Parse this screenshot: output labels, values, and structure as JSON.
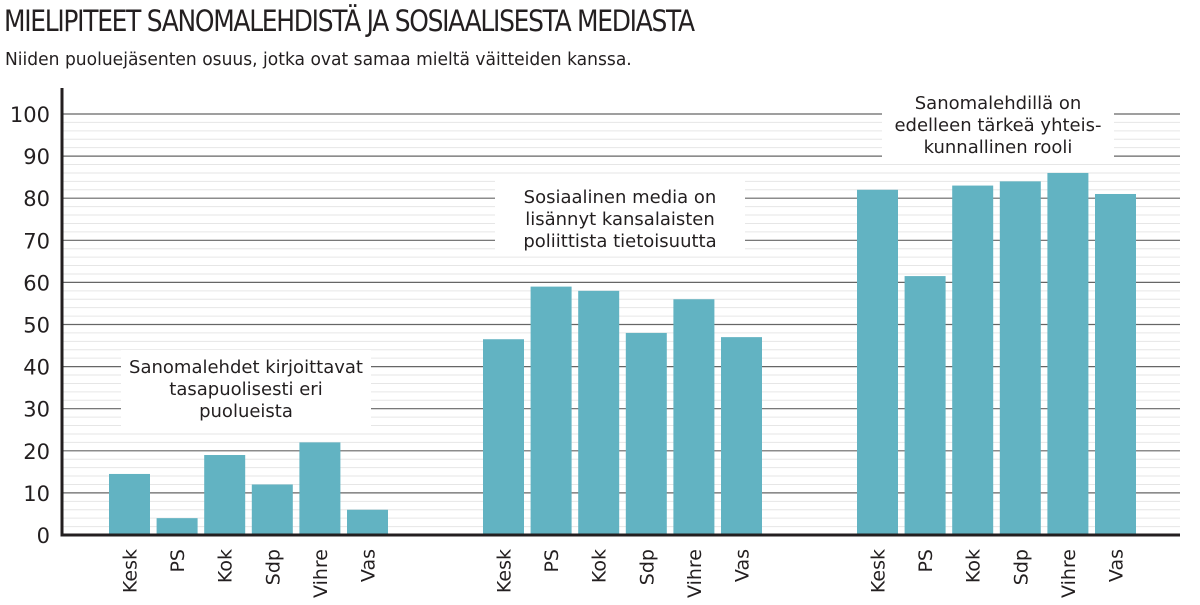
{
  "chart_data": {
    "type": "bar",
    "title": "MIELIPITEET SANOMALEHDISTÄ JA SOSIAALISESTA MEDIASTA",
    "subtitle": "Niiden puoluejäsenten osuus, jotka ovat samaa mieltä väitteiden kanssa.",
    "xlabel": "",
    "ylabel": "",
    "ylim": [
      0,
      100
    ],
    "yticks": [
      "0",
      "10",
      "20",
      "30",
      "40",
      "50",
      "60",
      "70",
      "80",
      "90",
      "100"
    ],
    "grid": true,
    "bar_color": "#62b3c2",
    "groups": [
      {
        "label": [
          "Sanomalehdet kirjoittavat",
          "tasapuolisesti eri",
          "puolueista"
        ],
        "categories": [
          "Kesk",
          "PS",
          "Kok",
          "Sdp",
          "Vihre",
          "Vas"
        ],
        "values": [
          14.5,
          4,
          19,
          12,
          22,
          6
        ]
      },
      {
        "label": [
          "Sosiaalinen media on",
          "lisännyt kansalaisten",
          "poliittista tietoisuutta"
        ],
        "categories": [
          "Kesk",
          "PS",
          "Kok",
          "Sdp",
          "Vihre",
          "Vas"
        ],
        "values": [
          46.5,
          59,
          58,
          48,
          56,
          47
        ]
      },
      {
        "label": [
          "Sanomalehdillä on",
          "edelleen tärkeä yhteis-",
          "kunnallinen rooli"
        ],
        "categories": [
          "Kesk",
          "PS",
          "Kok",
          "Sdp",
          "Vihre",
          "Vas"
        ],
        "values": [
          82,
          61.5,
          83,
          84,
          86,
          81
        ]
      }
    ]
  }
}
